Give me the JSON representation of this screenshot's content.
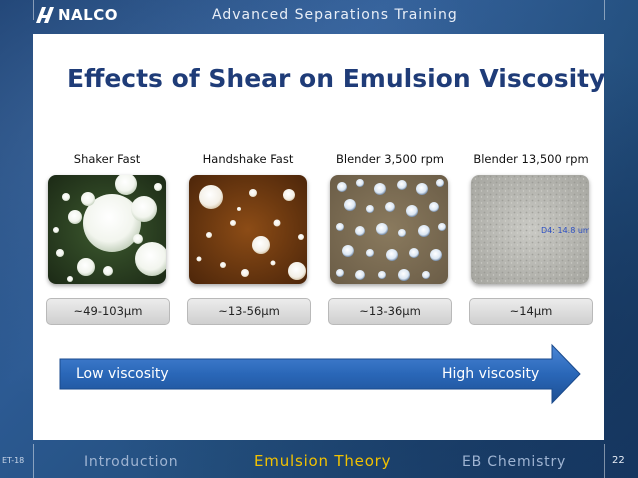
{
  "header": {
    "brand": "NALCO",
    "title": "Advanced Separations Training"
  },
  "slide": {
    "heading": "Effects of Shear on Emulsion Viscosity",
    "columns": [
      {
        "label": "Shaker Fast",
        "size": "~49-103µm"
      },
      {
        "label": "Handshake Fast",
        "size": "~13-56µm"
      },
      {
        "label": "Blender 3,500 rpm",
        "size": "~13-36µm"
      },
      {
        "label": "Blender 13,500 rpm",
        "size": "~14µm"
      }
    ],
    "photo_annotation": "D4: 14.8 um",
    "arrow": {
      "low": "Low viscosity",
      "high": "High viscosity"
    }
  },
  "footer": {
    "code": "ET-18",
    "nav": {
      "introduction": "Introduction",
      "emulsion_theory": "Emulsion Theory",
      "eb_chemistry": "EB Chemistry"
    },
    "page": "22"
  },
  "colors": {
    "heading": "#1f3c78",
    "active_nav": "#f2c200",
    "arrow": "#2a67b8"
  }
}
